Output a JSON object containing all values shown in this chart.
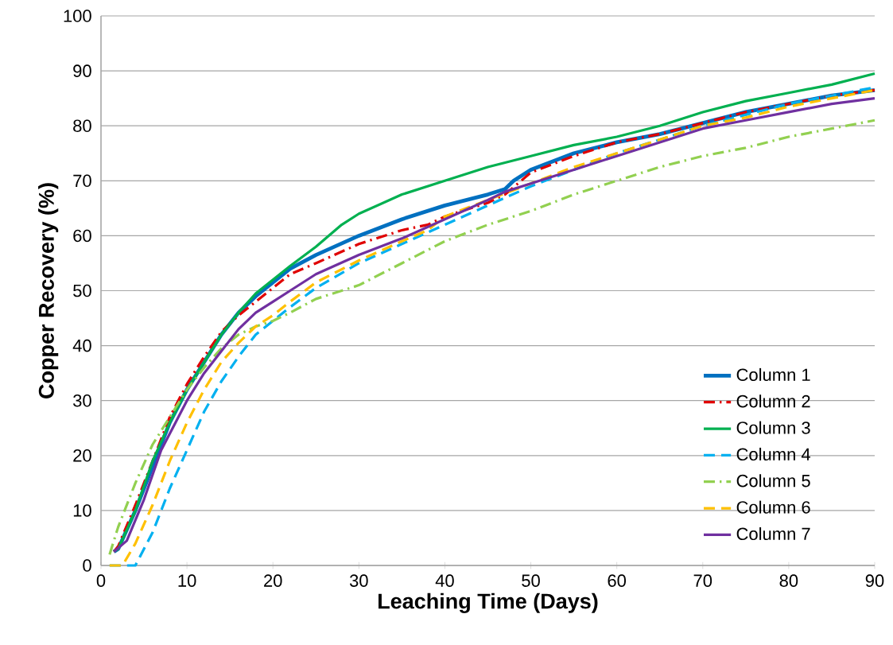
{
  "chart_data": {
    "type": "line",
    "xlabel": "Leaching Time (Days)",
    "ylabel": "Copper Recovery (%)",
    "xlim": [
      0,
      90
    ],
    "xticks": [
      0,
      10,
      20,
      30,
      40,
      50,
      60,
      70,
      80,
      90
    ],
    "ylim": [
      0,
      100
    ],
    "yticks": [
      0,
      10,
      20,
      30,
      40,
      50,
      60,
      70,
      80,
      90,
      100
    ],
    "grid": "y",
    "legend": "bottom right",
    "marker": "none",
    "series": [
      {
        "name": "Column 1",
        "color": "#0070c0",
        "line_style": "solid",
        "x": [
          1.5,
          2,
          4,
          6,
          8,
          10,
          12,
          14,
          16,
          18,
          20,
          22,
          25,
          30,
          35,
          40,
          45,
          47,
          48,
          50,
          55,
          60,
          65,
          70,
          75,
          80,
          85,
          90
        ],
        "values": [
          2.5,
          3,
          10,
          18,
          26,
          32,
          37,
          42,
          46,
          49,
          51.5,
          54,
          56.5,
          60,
          63,
          65.5,
          67.5,
          68.5,
          70,
          72,
          75,
          77,
          78.5,
          80.5,
          82.5,
          84,
          85.5,
          86.5
        ]
      },
      {
        "name": "Column 2",
        "color": "#e00000",
        "line_style": "dashdot",
        "x": [
          1.5,
          2,
          4,
          6,
          8,
          10,
          12,
          14,
          16,
          18,
          20,
          22,
          25,
          30,
          35,
          38,
          40,
          45,
          47,
          50,
          55,
          60,
          65,
          70,
          75,
          80,
          85,
          90
        ],
        "values": [
          2.5,
          3.5,
          11,
          19,
          27,
          33,
          38,
          42.5,
          45.5,
          48,
          50.5,
          53,
          55,
          58.5,
          61,
          62,
          63.5,
          66,
          67.5,
          71.5,
          74.5,
          77,
          78.5,
          80.5,
          82.5,
          84,
          85.5,
          86.5
        ]
      },
      {
        "name": "Column 3",
        "color": "#00b050",
        "line_style": "solid",
        "x": [
          1.5,
          2,
          4,
          6,
          8,
          10,
          12,
          14,
          16,
          18,
          20,
          22,
          25,
          28,
          30,
          35,
          40,
          45,
          50,
          55,
          60,
          65,
          70,
          75,
          80,
          85,
          90
        ],
        "values": [
          2.5,
          3,
          10,
          19,
          26,
          32,
          37,
          42,
          46,
          49.5,
          52,
          54.5,
          58,
          62,
          64,
          67.5,
          70,
          72.5,
          74.5,
          76.5,
          78,
          80,
          82.5,
          84.5,
          86,
          87.5,
          89.5
        ]
      },
      {
        "name": "Column 4",
        "color": "#00b0f0",
        "line_style": "dashed",
        "x": [
          1,
          4,
          6,
          8,
          10,
          12,
          14,
          16,
          18,
          20,
          22,
          25,
          30,
          35,
          40,
          45,
          50,
          55,
          60,
          65,
          70,
          75,
          80,
          85,
          90
        ],
        "values": [
          0,
          0,
          6,
          14,
          21,
          28,
          33.5,
          38,
          42,
          44.5,
          47,
          50.5,
          55,
          58.5,
          62,
          65.5,
          69,
          72,
          75,
          77.5,
          80,
          82,
          84,
          85.5,
          87
        ]
      },
      {
        "name": "Column 5",
        "color": "#92d050",
        "line_style": "dashdot",
        "x": [
          1,
          2,
          4,
          6,
          8,
          10,
          12,
          14,
          16,
          18,
          20,
          22,
          25,
          30,
          35,
          40,
          45,
          50,
          55,
          60,
          65,
          70,
          75,
          80,
          85,
          90
        ],
        "values": [
          2,
          7,
          15,
          22,
          27,
          32,
          36,
          39.5,
          42,
          43.5,
          44.5,
          46,
          48.5,
          51,
          55,
          59,
          62,
          64.5,
          67.5,
          70,
          72.5,
          74.5,
          76,
          78,
          79.5,
          81
        ]
      },
      {
        "name": "Column 6",
        "color": "#ffc000",
        "line_style": "dashed",
        "x": [
          1,
          2.5,
          4,
          6,
          8,
          10,
          12,
          14,
          16,
          18,
          20,
          22,
          25,
          30,
          35,
          38,
          40,
          45,
          50,
          55,
          60,
          65,
          70,
          75,
          80,
          85,
          90
        ],
        "values": [
          0,
          0,
          4,
          11,
          19,
          26,
          32,
          37,
          40.5,
          43.5,
          45.5,
          48,
          51.5,
          55.5,
          59,
          61,
          63.5,
          66.5,
          69.5,
          72.5,
          75,
          77.5,
          80,
          81.5,
          83.5,
          85,
          86.5
        ]
      },
      {
        "name": "Column 7",
        "color": "#7030a0",
        "line_style": "solid",
        "x": [
          1.5,
          3,
          5,
          7,
          10,
          12,
          14,
          16,
          18,
          20,
          22,
          25,
          30,
          35,
          40,
          45,
          47,
          50,
          55,
          60,
          65,
          70,
          75,
          80,
          85,
          90
        ],
        "values": [
          2.5,
          4.5,
          12,
          21,
          30,
          35,
          39,
          43,
          46,
          48,
          50,
          53,
          56.5,
          59.5,
          63,
          66.5,
          68,
          69.5,
          72,
          74.5,
          77,
          79.5,
          81,
          82.5,
          84,
          85
        ]
      }
    ]
  }
}
